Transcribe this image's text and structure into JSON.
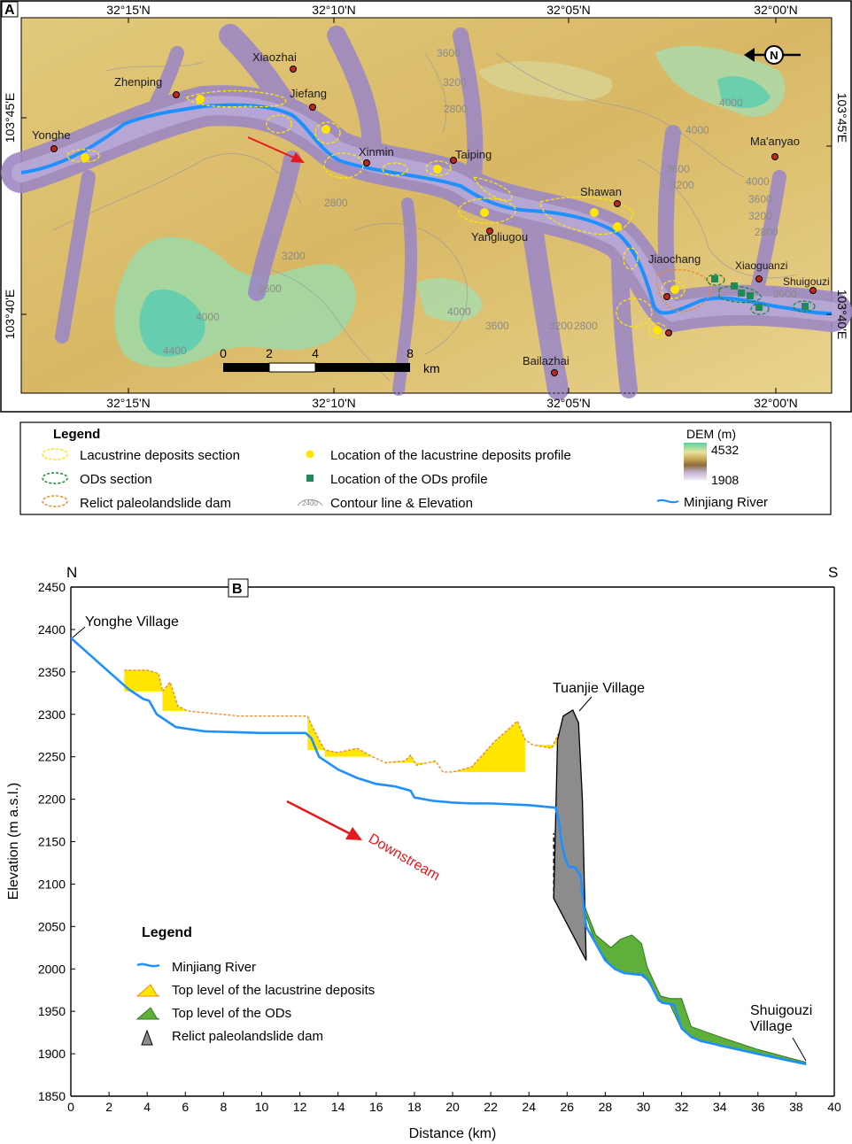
{
  "panel_a": {
    "label": "A",
    "top_lat_ticks": [
      "32°15'N",
      "32°10'N",
      "32°05'N",
      "32°00'N"
    ],
    "bottom_lat_ticks": [
      "32°15'N",
      "32°10'N",
      "32°05'N",
      "32°00'N"
    ],
    "left_lon_ticks": [
      "103°45'E",
      "103°40'E"
    ],
    "right_lon_ticks": [
      "103°45'E",
      "103°40'E"
    ],
    "villages": [
      "Yonghe",
      "Zhenping",
      "Xiaozhai",
      "Jiefang",
      "Xinmin",
      "Taiping",
      "Yangliugou",
      "Shawan",
      "Jiaochang",
      "Xiaoguanzi",
      "Shuigouzi",
      "Ma'anyao",
      "Bailazhai"
    ],
    "contours": [
      "3600",
      "3200",
      "2800",
      "2800",
      "3200",
      "3600",
      "4000",
      "4400",
      "4000",
      "3600",
      "3200",
      "2800",
      "4000",
      "4000",
      "3600",
      "3200",
      "4000",
      "3600",
      "3200",
      "2800",
      "2000"
    ],
    "scale_ticks": [
      "0",
      "2",
      "4",
      "8"
    ],
    "scale_unit": "km",
    "north_symbol": "N",
    "colors": {
      "river": "#1e90ff",
      "low": "#b9a6cf",
      "mid": "#d9bf6a",
      "high": "#6fd3a6",
      "valley": "#8f7fb8"
    }
  },
  "legend_a": {
    "title": "Legend",
    "items": [
      "Lacustrine deposits section",
      "ODs section",
      "Relict paleolandslide dam",
      "Location of the lacustrine deposits profile",
      "Location of the ODs profile",
      "Contour line & Elevation"
    ],
    "contour_sample": "2400",
    "dem_title": "DEM (m)",
    "dem_max": "4532",
    "dem_min": "1908",
    "river_label": "Minjiang River"
  },
  "panel_b": {
    "label": "B",
    "north_label": "N",
    "south_label": "S",
    "annotations": [
      "Yonghe Village",
      "Tuanjie Village",
      "Shuigouzi\nVillage",
      "Downstream"
    ],
    "legend_title": "Legend",
    "legend_items": [
      "Minjiang River",
      "Top level of the  lacustrine deposits",
      "Top level  of  the  ODs",
      "Relict paleolandslide dam"
    ],
    "colors": {
      "river": "#1e90ff",
      "lacustrine": "#ffe600",
      "lacustrine_edge": "#f08a24",
      "ods": "#5fb03b",
      "dam": "#8c8c8c",
      "arrow": "#e8191c"
    }
  },
  "chart_data": {
    "type": "line",
    "xlabel": "Distance (km)",
    "ylabel": "Elevation (m a.s.l.)",
    "xlim": [
      0,
      40
    ],
    "ylim": [
      1850,
      2450
    ],
    "xticks": [
      "0",
      "2",
      "4",
      "6",
      "8",
      "10",
      "12",
      "14",
      "16",
      "18",
      "20",
      "22",
      "24",
      "26",
      "28",
      "30",
      "32",
      "34",
      "36",
      "38",
      "40"
    ],
    "yticks": [
      "1850",
      "1900",
      "1950",
      "2000",
      "2050",
      "2100",
      "2150",
      "2200",
      "2250",
      "2300",
      "2350",
      "2400",
      "2450"
    ],
    "series": [
      {
        "name": "Minjiang River",
        "x": [
          0,
          1,
          2,
          3,
          3.8,
          4.1,
          4.5,
          5.5,
          7,
          10,
          12.3,
          12.6,
          13,
          14,
          15,
          16,
          17,
          17.8,
          18,
          19,
          20,
          21,
          22,
          24,
          25.4,
          25.6,
          25.7,
          25.9,
          26.1,
          26.4,
          26.7,
          27,
          28,
          28.5,
          29,
          30,
          30.3,
          30.8,
          31,
          31.6,
          32,
          32.5,
          33,
          35,
          37,
          38.5
        ],
        "y": [
          2390,
          2370,
          2350,
          2330,
          2318,
          2316,
          2300,
          2285,
          2280,
          2278,
          2278,
          2272,
          2250,
          2235,
          2225,
          2218,
          2215,
          2210,
          2202,
          2198,
          2196,
          2195,
          2195,
          2193,
          2190,
          2170,
          2150,
          2130,
          2120,
          2120,
          2110,
          2050,
          2010,
          2000,
          1995,
          1993,
          1985,
          1963,
          1960,
          1958,
          1930,
          1920,
          1915,
          1905,
          1895,
          1888
        ]
      },
      {
        "name": "Top level of the lacustrine deposits",
        "x": [
          2.8,
          4,
          4.6,
          4.8,
          5.2,
          5.6,
          6.1,
          8.8,
          10.8,
          12.4,
          12.7,
          13.3,
          14,
          15,
          15.8,
          16.5,
          17.5,
          17.8,
          18.1,
          19.1,
          19.5,
          20,
          21,
          22.2,
          23.4,
          23.8,
          24.2,
          25.2,
          25.8,
          26.3
        ],
        "y": [
          2352,
          2352,
          2348,
          2327,
          2338,
          2310,
          2304,
          2298,
          2298,
          2298,
          2283,
          2258,
          2255,
          2260,
          2250,
          2243,
          2245,
          2252,
          2240,
          2245,
          2232,
          2232,
          2238,
          2268,
          2292,
          2270,
          2264,
          2260,
          2290,
          2306
        ]
      },
      {
        "name": "Top level of the ODs",
        "x": [
          26.9,
          27.5,
          28.3,
          28.8,
          29.4,
          29.9,
          30.2,
          30.9,
          31.4,
          32,
          32.5,
          34,
          36,
          38.5
        ],
        "y": [
          2075,
          2040,
          2025,
          2035,
          2040,
          2030,
          2002,
          1968,
          1965,
          1965,
          1932,
          1920,
          1905,
          1890
        ]
      },
      {
        "name": "Relict paleolandslide dam",
        "x": [
          25.3,
          25.5,
          25.8,
          26.3,
          26.6,
          26.8,
          27
        ],
        "y": [
          2083,
          2270,
          2298,
          2305,
          2290,
          2200,
          2010
        ]
      }
    ]
  }
}
